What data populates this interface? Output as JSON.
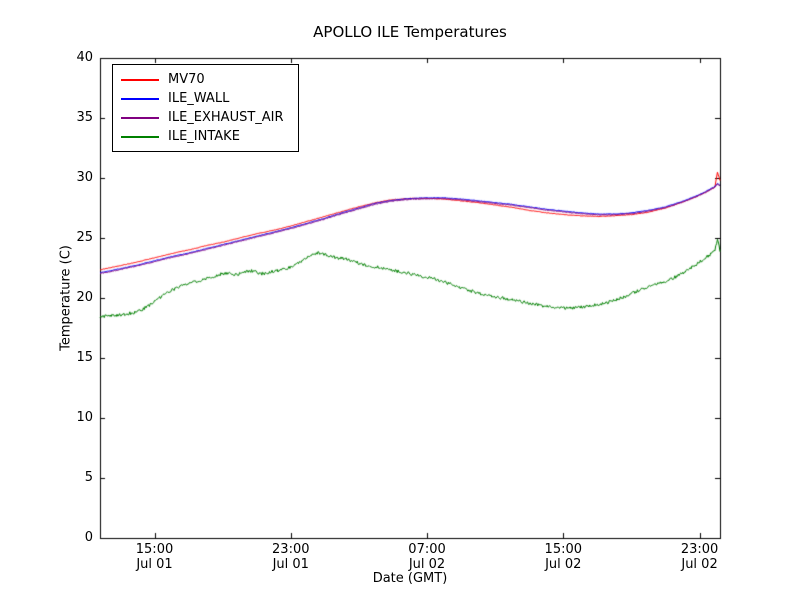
{
  "chart_data": {
    "type": "line",
    "title": "APOLLO ILE Temperatures",
    "xlabel": "Date (GMT)",
    "ylabel": "Temperature (C)",
    "ylim": [
      0,
      40
    ],
    "yticks": [
      0,
      5,
      10,
      15,
      20,
      25,
      30,
      35,
      40
    ],
    "xlim_hours": [
      11.8,
      48.2
    ],
    "xticks": [
      {
        "hour": 15,
        "label": "15:00",
        "sublabel": "Jul 01"
      },
      {
        "hour": 23,
        "label": "23:00",
        "sublabel": "Jul 01"
      },
      {
        "hour": 31,
        "label": "07:00",
        "sublabel": "Jul 02"
      },
      {
        "hour": 39,
        "label": "15:00",
        "sublabel": "Jul 02"
      },
      {
        "hour": 47,
        "label": "23:00",
        "sublabel": "Jul 02"
      }
    ],
    "grid": false,
    "legend_position": "upper left",
    "background": "#ffffff",
    "axes_color": "#000000",
    "series": [
      {
        "name": "MV70",
        "color": "#ff0000",
        "noise": 0.02,
        "points": [
          [
            11.8,
            22.35
          ],
          [
            13,
            22.7
          ],
          [
            14,
            23.0
          ],
          [
            15,
            23.35
          ],
          [
            16,
            23.7
          ],
          [
            17,
            24.0
          ],
          [
            18,
            24.35
          ],
          [
            19,
            24.65
          ],
          [
            20,
            25.0
          ],
          [
            21,
            25.35
          ],
          [
            22,
            25.65
          ],
          [
            23,
            26.0
          ],
          [
            24,
            26.4
          ],
          [
            25,
            26.8
          ],
          [
            26,
            27.2
          ],
          [
            27,
            27.6
          ],
          [
            28,
            27.95
          ],
          [
            29,
            28.2
          ],
          [
            30,
            28.3
          ],
          [
            31,
            28.3
          ],
          [
            32,
            28.25
          ],
          [
            33,
            28.1
          ],
          [
            34,
            27.95
          ],
          [
            35,
            27.75
          ],
          [
            36,
            27.55
          ],
          [
            37,
            27.3
          ],
          [
            38,
            27.1
          ],
          [
            39,
            26.95
          ],
          [
            40,
            26.85
          ],
          [
            41,
            26.8
          ],
          [
            42,
            26.85
          ],
          [
            43,
            26.95
          ],
          [
            44,
            27.15
          ],
          [
            45,
            27.5
          ],
          [
            46,
            28.0
          ],
          [
            46.8,
            28.45
          ],
          [
            47.4,
            28.85
          ],
          [
            47.9,
            29.25
          ],
          [
            48.05,
            30.5
          ],
          [
            48.2,
            29.8
          ]
        ]
      },
      {
        "name": "ILE_WALL",
        "color": "#0000ff",
        "noise": 0.02,
        "points": [
          [
            11.8,
            22.1
          ],
          [
            13,
            22.45
          ],
          [
            14,
            22.75
          ],
          [
            15,
            23.1
          ],
          [
            16,
            23.45
          ],
          [
            17,
            23.75
          ],
          [
            18,
            24.1
          ],
          [
            19,
            24.45
          ],
          [
            20,
            24.8
          ],
          [
            21,
            25.15
          ],
          [
            22,
            25.5
          ],
          [
            23,
            25.85
          ],
          [
            24,
            26.25
          ],
          [
            25,
            26.65
          ],
          [
            26,
            27.1
          ],
          [
            27,
            27.5
          ],
          [
            28,
            27.9
          ],
          [
            29,
            28.15
          ],
          [
            30,
            28.3
          ],
          [
            31,
            28.35
          ],
          [
            32,
            28.35
          ],
          [
            33,
            28.25
          ],
          [
            34,
            28.1
          ],
          [
            35,
            27.95
          ],
          [
            36,
            27.8
          ],
          [
            37,
            27.6
          ],
          [
            38,
            27.4
          ],
          [
            39,
            27.25
          ],
          [
            40,
            27.1
          ],
          [
            41,
            27.0
          ],
          [
            42,
            27.0
          ],
          [
            43,
            27.1
          ],
          [
            44,
            27.3
          ],
          [
            45,
            27.6
          ],
          [
            46,
            28.05
          ],
          [
            46.8,
            28.5
          ],
          [
            47.4,
            28.9
          ],
          [
            47.9,
            29.3
          ],
          [
            48.05,
            29.55
          ],
          [
            48.2,
            29.4
          ]
        ]
      },
      {
        "name": "ILE_EXHAUST_AIR",
        "color": "#800080",
        "noise": 0.03,
        "points": [
          [
            11.8,
            22.03
          ],
          [
            13,
            22.38
          ],
          [
            14,
            22.68
          ],
          [
            15,
            23.03
          ],
          [
            16,
            23.38
          ],
          [
            17,
            23.68
          ],
          [
            18,
            24.03
          ],
          [
            19,
            24.38
          ],
          [
            20,
            24.73
          ],
          [
            21,
            25.08
          ],
          [
            22,
            25.43
          ],
          [
            23,
            25.78
          ],
          [
            24,
            26.18
          ],
          [
            25,
            26.58
          ],
          [
            26,
            27.03
          ],
          [
            27,
            27.43
          ],
          [
            28,
            27.83
          ],
          [
            29,
            28.08
          ],
          [
            30,
            28.23
          ],
          [
            31,
            28.28
          ],
          [
            32,
            28.28
          ],
          [
            33,
            28.18
          ],
          [
            34,
            28.03
          ],
          [
            35,
            27.88
          ],
          [
            36,
            27.73
          ],
          [
            37,
            27.53
          ],
          [
            38,
            27.33
          ],
          [
            39,
            27.18
          ],
          [
            40,
            27.03
          ],
          [
            41,
            26.93
          ],
          [
            42,
            26.93
          ],
          [
            43,
            27.03
          ],
          [
            44,
            27.23
          ],
          [
            45,
            27.53
          ],
          [
            46,
            27.98
          ],
          [
            46.8,
            28.43
          ],
          [
            47.4,
            28.83
          ],
          [
            47.9,
            29.23
          ],
          [
            48.05,
            29.5
          ],
          [
            48.2,
            29.35
          ]
        ]
      },
      {
        "name": "ILE_INTAKE",
        "color": "#008000",
        "noise": 0.13,
        "points": [
          [
            11.8,
            18.45
          ],
          [
            12.3,
            18.5
          ],
          [
            12.8,
            18.55
          ],
          [
            13.3,
            18.65
          ],
          [
            13.8,
            18.8
          ],
          [
            14.3,
            19.05
          ],
          [
            14.8,
            19.5
          ],
          [
            15.3,
            20.0
          ],
          [
            15.8,
            20.5
          ],
          [
            16.3,
            20.85
          ],
          [
            16.8,
            21.1
          ],
          [
            17.3,
            21.3
          ],
          [
            17.8,
            21.5
          ],
          [
            18.3,
            21.75
          ],
          [
            18.8,
            21.95
          ],
          [
            19.3,
            22.1
          ],
          [
            19.8,
            21.9
          ],
          [
            20.3,
            22.2
          ],
          [
            20.8,
            22.25
          ],
          [
            21.3,
            22.0
          ],
          [
            21.8,
            22.15
          ],
          [
            22.3,
            22.3
          ],
          [
            22.8,
            22.5
          ],
          [
            23.3,
            22.8
          ],
          [
            23.8,
            23.2
          ],
          [
            24.2,
            23.55
          ],
          [
            24.6,
            23.8
          ],
          [
            25.0,
            23.6
          ],
          [
            25.5,
            23.4
          ],
          [
            26.0,
            23.3
          ],
          [
            26.5,
            23.15
          ],
          [
            27.0,
            22.9
          ],
          [
            27.5,
            22.7
          ],
          [
            28.0,
            22.6
          ],
          [
            28.5,
            22.45
          ],
          [
            29.0,
            22.3
          ],
          [
            29.8,
            22.1
          ],
          [
            30.6,
            21.85
          ],
          [
            31.4,
            21.6
          ],
          [
            32.2,
            21.25
          ],
          [
            33.0,
            20.85
          ],
          [
            33.8,
            20.5
          ],
          [
            34.6,
            20.2
          ],
          [
            35.4,
            20.0
          ],
          [
            36.2,
            19.8
          ],
          [
            37.0,
            19.55
          ],
          [
            37.8,
            19.35
          ],
          [
            38.6,
            19.2
          ],
          [
            39.4,
            19.15
          ],
          [
            40.2,
            19.25
          ],
          [
            41.0,
            19.45
          ],
          [
            41.8,
            19.7
          ],
          [
            42.6,
            20.1
          ],
          [
            43.4,
            20.6
          ],
          [
            44.2,
            21.0
          ],
          [
            45.0,
            21.4
          ],
          [
            45.8,
            21.9
          ],
          [
            46.4,
            22.4
          ],
          [
            47.0,
            23.0
          ],
          [
            47.5,
            23.5
          ],
          [
            47.9,
            23.9
          ],
          [
            48.05,
            25.0
          ],
          [
            48.2,
            23.9
          ]
        ]
      }
    ]
  }
}
